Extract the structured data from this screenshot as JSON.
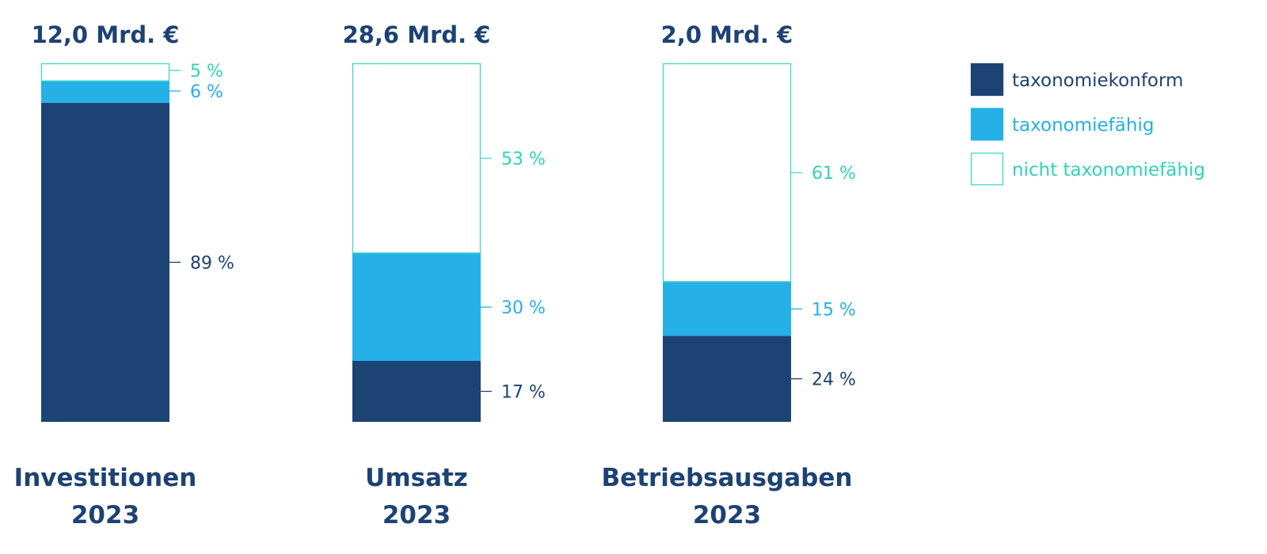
{
  "chart_data": {
    "type": "bar",
    "stacked": true,
    "normalized_percent": true,
    "categories": [
      {
        "name": "Investitionen",
        "year": "2023",
        "total": "12,0 Mrd. €"
      },
      {
        "name": "Umsatz",
        "year": "2023",
        "total": "28,6 Mrd. €"
      },
      {
        "name": "Betriebsausgaben",
        "year": "2023",
        "total": "2,0 Mrd. €"
      }
    ],
    "series": [
      {
        "name": "taxonomiekonform",
        "color": "#1d4274",
        "values": [
          89,
          17,
          24
        ],
        "labels": [
          "89 %",
          "17 %",
          "24 %"
        ]
      },
      {
        "name": "taxonomiefähig",
        "color": "#25b0e8",
        "values": [
          6,
          30,
          15
        ],
        "labels": [
          "6 %",
          "30 %",
          "15 %"
        ]
      },
      {
        "name": "nicht taxonomiefähig",
        "color": "#ffffff",
        "outline": "#3dd9c1",
        "text_color": "#2fd3b8",
        "values": [
          5,
          53,
          61
        ],
        "labels": [
          "5 %",
          "53 %",
          "61 %"
        ]
      }
    ],
    "legend_position": "top-right",
    "grid": false
  }
}
